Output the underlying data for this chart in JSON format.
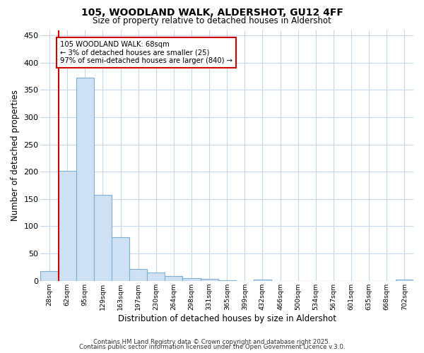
{
  "title": "105, WOODLAND WALK, ALDERSHOT, GU12 4FF",
  "subtitle": "Size of property relative to detached houses in Aldershot",
  "xlabel": "Distribution of detached houses by size in Aldershot",
  "ylabel": "Number of detached properties",
  "bar_color": "#cfe0f3",
  "bar_edge_color": "#7aaed6",
  "background_color": "#ffffff",
  "fig_background_color": "#ffffff",
  "grid_color": "#c8d8e8",
  "categories": [
    "28sqm",
    "62sqm",
    "95sqm",
    "129sqm",
    "163sqm",
    "197sqm",
    "230sqm",
    "264sqm",
    "298sqm",
    "331sqm",
    "365sqm",
    "399sqm",
    "432sqm",
    "466sqm",
    "500sqm",
    "534sqm",
    "567sqm",
    "601sqm",
    "635sqm",
    "668sqm",
    "702sqm"
  ],
  "values": [
    18,
    202,
    372,
    157,
    80,
    22,
    15,
    8,
    5,
    3,
    1,
    0,
    2,
    0,
    0,
    0,
    0,
    0,
    0,
    0,
    2
  ],
  "ylim": [
    0,
    460
  ],
  "yticks": [
    0,
    50,
    100,
    150,
    200,
    250,
    300,
    350,
    400,
    450
  ],
  "vline_color": "#cc0000",
  "annotation_text": "105 WOODLAND WALK: 68sqm\n← 3% of detached houses are smaller (25)\n97% of semi-detached houses are larger (840) →",
  "annotation_box_facecolor": "#ffffff",
  "annotation_box_edgecolor": "#cc0000",
  "footer_line1": "Contains HM Land Registry data © Crown copyright and database right 2025.",
  "footer_line2": "Contains public sector information licensed under the Open Government Licence v.3.0."
}
